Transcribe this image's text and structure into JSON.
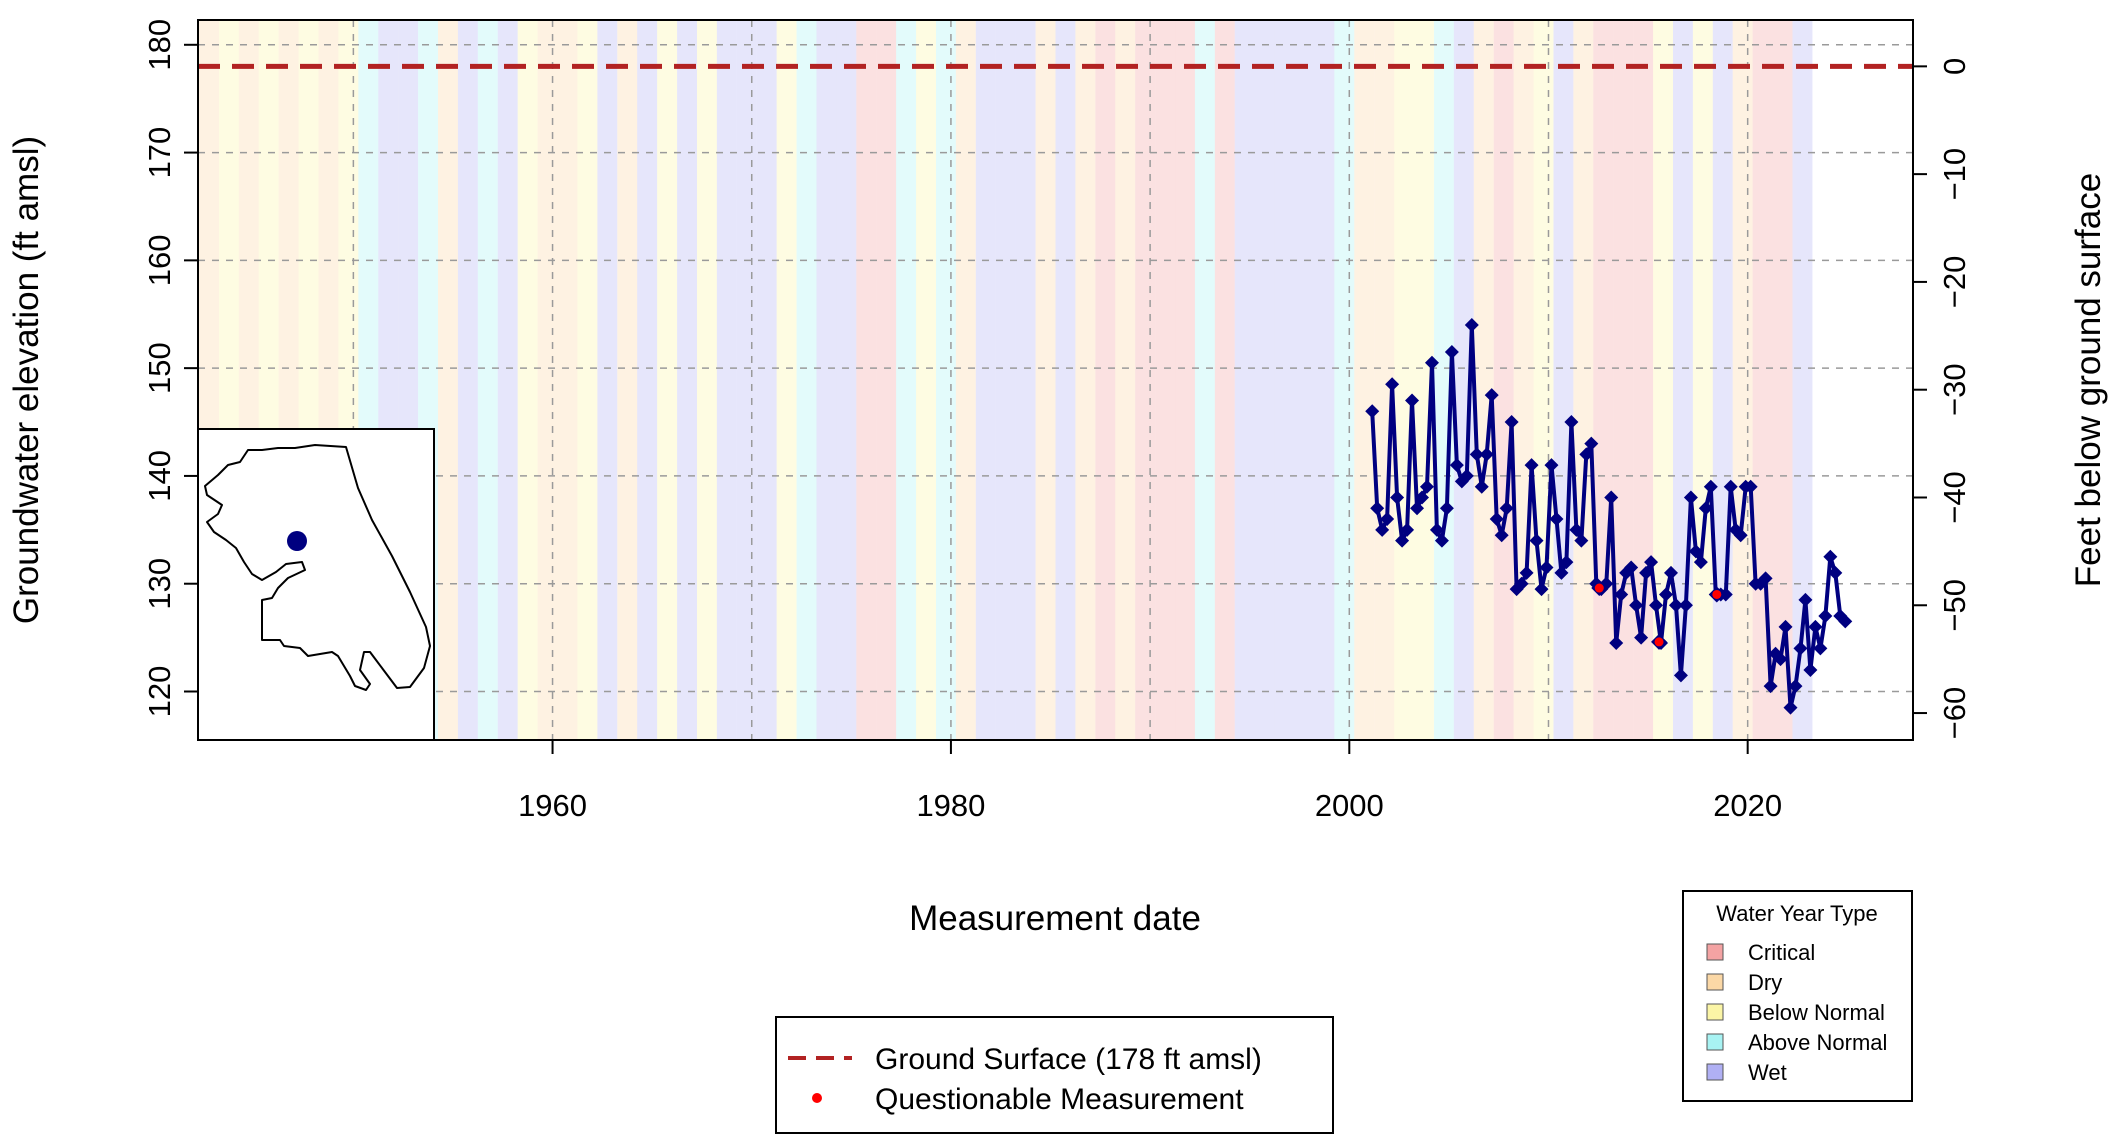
{
  "chart_data": {
    "type": "line",
    "title": "",
    "xlabel": "Measurement date",
    "ylabel_left": "Groundwater elevation (ft amsl)",
    "ylabel_right": "Feet below ground surface",
    "xlim": [
      1942.2,
      2028.3
    ],
    "ylim_left": [
      115.5,
      182.3
    ],
    "ground_surface": 178,
    "x_ticks": [
      1960,
      1980,
      2000,
      2020
    ],
    "x_tick_labels": [
      "1960",
      "1980",
      "2000",
      "2020"
    ],
    "x_grid": [
      1950,
      1960,
      1970,
      1980,
      1990,
      2000,
      2010,
      2020
    ],
    "y_ticks_left": [
      120,
      130,
      140,
      150,
      160,
      170,
      180
    ],
    "y_tick_labels_left": [
      "120",
      "130",
      "140",
      "150",
      "160",
      "170",
      "180"
    ],
    "y_ticks_right": [
      0,
      -10,
      -20,
      -30,
      -40,
      -50,
      -60
    ],
    "y_tick_labels_right": [
      "0",
      "−10",
      "−20",
      "−30",
      "−40",
      "−50",
      "−60"
    ],
    "grid": true,
    "colors": {
      "critical": "#f4a3a3",
      "dry": "#fbd8a6",
      "below_normal": "#fbf5a6",
      "above_normal": "#a8f3f3",
      "wet": "#b0b0f4",
      "series": "#000080",
      "ground": "#b22222",
      "questionable": "#ff0000"
    },
    "water_years": [
      {
        "year": 1942,
        "type": "dry"
      },
      {
        "year": 1943,
        "type": "dry"
      },
      {
        "year": 1944,
        "type": "below_normal"
      },
      {
        "year": 1945,
        "type": "dry"
      },
      {
        "year": 1946,
        "type": "below_normal"
      },
      {
        "year": 1947,
        "type": "dry"
      },
      {
        "year": 1948,
        "type": "below_normal"
      },
      {
        "year": 1949,
        "type": "dry"
      },
      {
        "year": 1950,
        "type": "below_normal"
      },
      {
        "year": 1951,
        "type": "above_normal"
      },
      {
        "year": 1952,
        "type": "wet"
      },
      {
        "year": 1953,
        "type": "wet"
      },
      {
        "year": 1954,
        "type": "above_normal"
      },
      {
        "year": 1955,
        "type": "dry"
      },
      {
        "year": 1956,
        "type": "wet"
      },
      {
        "year": 1957,
        "type": "above_normal"
      },
      {
        "year": 1958,
        "type": "wet"
      },
      {
        "year": 1959,
        "type": "below_normal"
      },
      {
        "year": 1960,
        "type": "dry"
      },
      {
        "year": 1961,
        "type": "dry"
      },
      {
        "year": 1962,
        "type": "below_normal"
      },
      {
        "year": 1963,
        "type": "wet"
      },
      {
        "year": 1964,
        "type": "dry"
      },
      {
        "year": 1965,
        "type": "wet"
      },
      {
        "year": 1966,
        "type": "below_normal"
      },
      {
        "year": 1967,
        "type": "wet"
      },
      {
        "year": 1968,
        "type": "below_normal"
      },
      {
        "year": 1969,
        "type": "wet"
      },
      {
        "year": 1970,
        "type": "wet"
      },
      {
        "year": 1971,
        "type": "wet"
      },
      {
        "year": 1972,
        "type": "below_normal"
      },
      {
        "year": 1973,
        "type": "above_normal"
      },
      {
        "year": 1974,
        "type": "wet"
      },
      {
        "year": 1975,
        "type": "wet"
      },
      {
        "year": 1976,
        "type": "critical"
      },
      {
        "year": 1977,
        "type": "critical"
      },
      {
        "year": 1978,
        "type": "above_normal"
      },
      {
        "year": 1979,
        "type": "below_normal"
      },
      {
        "year": 1980,
        "type": "above_normal"
      },
      {
        "year": 1981,
        "type": "dry"
      },
      {
        "year": 1982,
        "type": "wet"
      },
      {
        "year": 1983,
        "type": "wet"
      },
      {
        "year": 1984,
        "type": "wet"
      },
      {
        "year": 1985,
        "type": "dry"
      },
      {
        "year": 1986,
        "type": "wet"
      },
      {
        "year": 1987,
        "type": "dry"
      },
      {
        "year": 1988,
        "type": "critical"
      },
      {
        "year": 1989,
        "type": "dry"
      },
      {
        "year": 1990,
        "type": "critical"
      },
      {
        "year": 1991,
        "type": "critical"
      },
      {
        "year": 1992,
        "type": "critical"
      },
      {
        "year": 1993,
        "type": "above_normal"
      },
      {
        "year": 1994,
        "type": "critical"
      },
      {
        "year": 1995,
        "type": "wet"
      },
      {
        "year": 1996,
        "type": "wet"
      },
      {
        "year": 1997,
        "type": "wet"
      },
      {
        "year": 1998,
        "type": "wet"
      },
      {
        "year": 1999,
        "type": "wet"
      },
      {
        "year": 2000,
        "type": "above_normal"
      },
      {
        "year": 2001,
        "type": "dry"
      },
      {
        "year": 2002,
        "type": "dry"
      },
      {
        "year": 2003,
        "type": "below_normal"
      },
      {
        "year": 2004,
        "type": "below_normal"
      },
      {
        "year": 2005,
        "type": "above_normal"
      },
      {
        "year": 2006,
        "type": "wet"
      },
      {
        "year": 2007,
        "type": "dry"
      },
      {
        "year": 2008,
        "type": "critical"
      },
      {
        "year": 2009,
        "type": "dry"
      },
      {
        "year": 2010,
        "type": "below_normal"
      },
      {
        "year": 2011,
        "type": "wet"
      },
      {
        "year": 2012,
        "type": "dry"
      },
      {
        "year": 2013,
        "type": "critical"
      },
      {
        "year": 2014,
        "type": "critical"
      },
      {
        "year": 2015,
        "type": "critical"
      },
      {
        "year": 2016,
        "type": "below_normal"
      },
      {
        "year": 2017,
        "type": "wet"
      },
      {
        "year": 2018,
        "type": "below_normal"
      },
      {
        "year": 2019,
        "type": "wet"
      },
      {
        "year": 2020,
        "type": "dry"
      },
      {
        "year": 2021,
        "type": "critical"
      },
      {
        "year": 2022,
        "type": "critical"
      },
      {
        "year": 2023,
        "type": "wet"
      }
    ],
    "series": [
      {
        "x": [
          2001.15,
          2001.4,
          2001.65,
          2001.9,
          2002.15,
          2002.4,
          2002.65,
          2002.9,
          2003.15,
          2003.4,
          2003.65,
          2003.9,
          2004.15,
          2004.4,
          2004.65,
          2004.9,
          2005.15,
          2005.4,
          2005.65,
          2005.9,
          2006.15,
          2006.4,
          2006.65,
          2006.9,
          2007.15,
          2007.4,
          2007.65,
          2007.9,
          2008.15,
          2008.4,
          2008.65,
          2008.9,
          2009.15,
          2009.4,
          2009.65,
          2009.9,
          2010.15,
          2010.4,
          2010.65,
          2010.9,
          2011.15,
          2011.4,
          2011.65,
          2011.9,
          2012.15,
          2012.4,
          2012.65,
          2012.9,
          2013.15,
          2013.4,
          2013.65,
          2013.9,
          2014.15,
          2014.4,
          2014.65,
          2014.9,
          2015.15,
          2015.4,
          2015.65,
          2015.9,
          2016.15,
          2016.4,
          2016.65,
          2016.9,
          2017.15,
          2017.4,
          2017.65,
          2017.9,
          2018.15,
          2018.4,
          2018.65,
          2018.9,
          2019.15,
          2019.4,
          2019.65,
          2019.9,
          2020.15,
          2020.4,
          2020.65,
          2020.9,
          2021.15,
          2021.4,
          2021.65,
          2021.9,
          2022.15,
          2022.4,
          2022.65,
          2022.9,
          2023.15,
          2023.4,
          2023.65,
          2023.9,
          2024.15,
          2024.4,
          2024.65,
          2024.9
        ],
        "y": [
          146.0,
          137.0,
          135.0,
          136.0,
          148.5,
          138.0,
          134.0,
          135.0,
          147.0,
          137.0,
          138.0,
          139.0,
          150.5,
          135.0,
          134.0,
          137.0,
          151.5,
          141.0,
          139.5,
          140.0,
          154.0,
          142.0,
          139.0,
          142.0,
          147.5,
          136.0,
          134.5,
          137.0,
          145.0,
          129.5,
          130.0,
          131.0,
          141.0,
          134.0,
          129.5,
          131.5,
          141.0,
          136.0,
          131.0,
          132.0,
          145.0,
          135.0,
          134.0,
          142.0,
          143.0,
          130.0,
          129.5,
          130.0,
          138.0,
          124.5,
          129.0,
          131.0,
          131.5,
          128.0,
          125.0,
          131.0,
          132.0,
          128.0,
          124.5,
          129.0,
          131.0,
          128.0,
          121.5,
          128.0,
          138.0,
          133.0,
          132.0,
          137.0,
          139.0,
          129.0,
          129.0,
          129.0,
          139.0,
          135.0,
          134.5,
          139.0,
          139.0,
          130.0,
          130.0,
          130.5,
          120.5,
          123.5,
          123.0,
          126.0,
          118.5,
          120.5,
          124.0,
          128.5,
          122.0,
          126.0,
          124.0,
          127.0,
          132.5,
          131.0,
          127.0,
          126.5
        ],
        "questionable_x": [
          2012.55,
          2015.55,
          2018.45
        ],
        "questionable_y": [
          129.6,
          124.6,
          129.0
        ]
      }
    ]
  },
  "legend_main": {
    "ground_label": "Ground Surface (178 ft amsl)",
    "questionable_label": "Questionable Measurement"
  },
  "legend_wy": {
    "title": "Water Year Type",
    "items": [
      {
        "key": "critical",
        "label": "Critical"
      },
      {
        "key": "dry",
        "label": "Dry"
      },
      {
        "key": "below_normal",
        "label": "Below Normal"
      },
      {
        "key": "above_normal",
        "label": "Above Normal"
      },
      {
        "key": "wet",
        "label": "Wet"
      }
    ]
  },
  "inset_map": {
    "marker_color": "#000080"
  }
}
